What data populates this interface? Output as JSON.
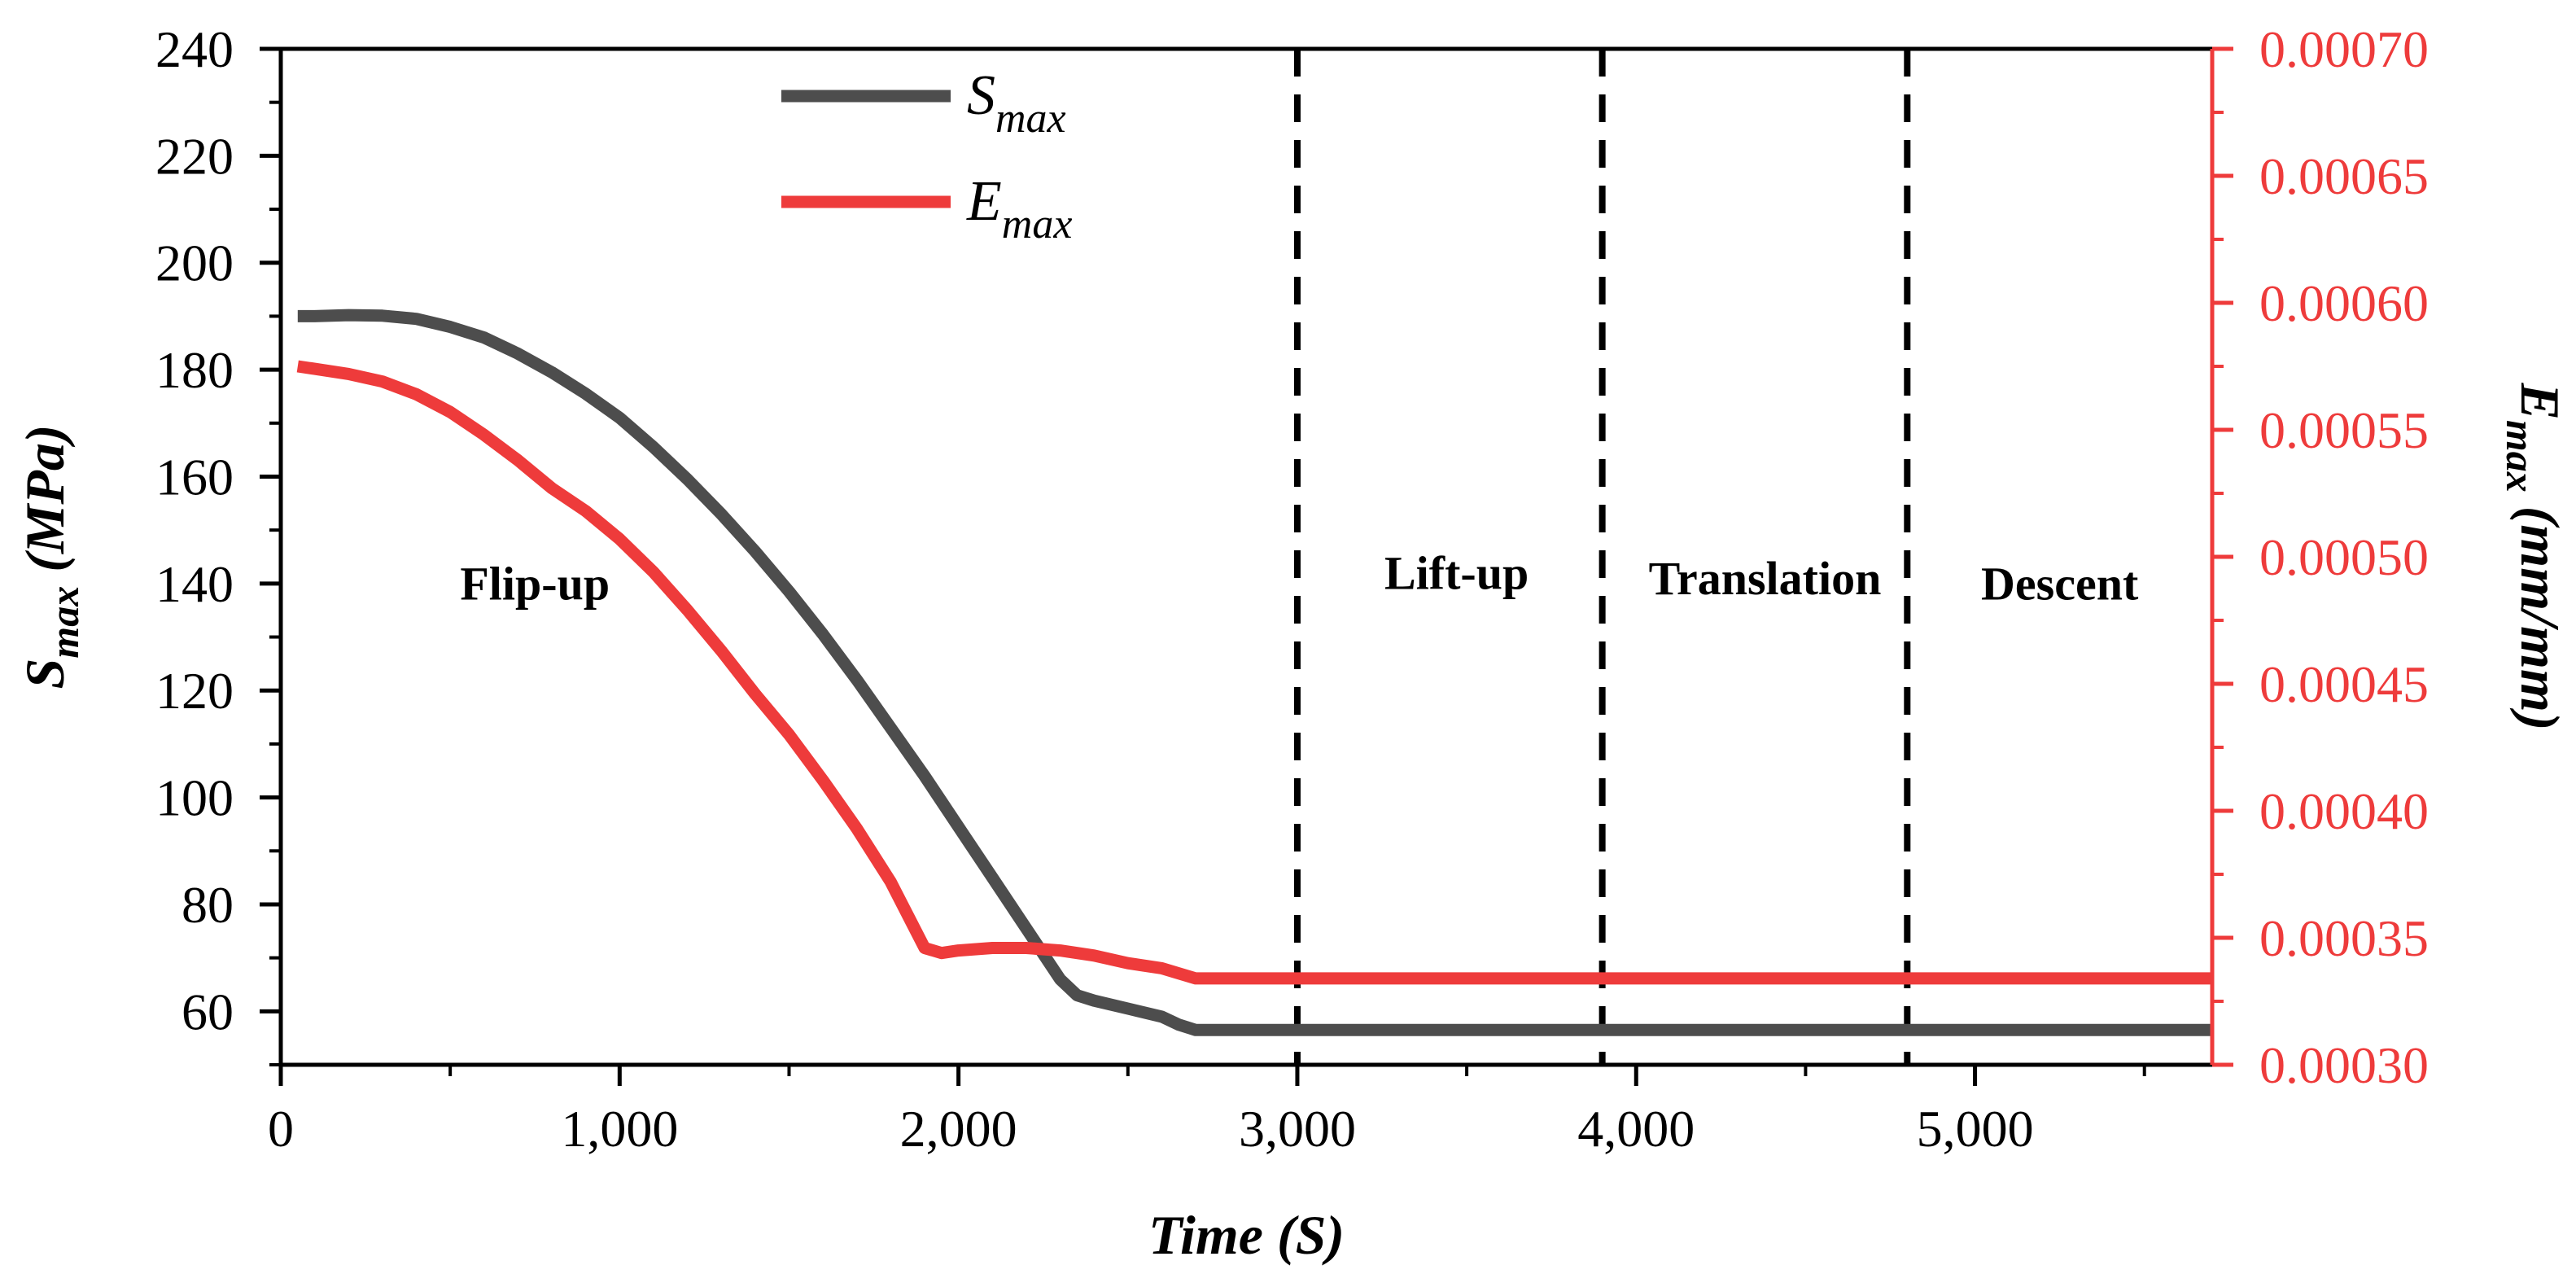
{
  "chart_data": {
    "type": "line",
    "x": {
      "label_main": "Time",
      "label_unit": "(S)",
      "range": [
        0,
        5700
      ],
      "ticks": [
        0,
        1000,
        2000,
        3000,
        4000,
        5000
      ],
      "tick_labels": [
        "0",
        "1,000",
        "2,000",
        "3,000",
        "4,000",
        "5,000"
      ]
    },
    "y_left": {
      "label_var": "S",
      "label_sub": "max",
      "label_unit": "(MPa)",
      "range": [
        50,
        240
      ],
      "ticks": [
        60,
        80,
        100,
        120,
        140,
        160,
        180,
        200,
        220,
        240
      ],
      "tick_labels": [
        "60",
        "80",
        "100",
        "120",
        "140",
        "160",
        "180",
        "200",
        "220",
        "240"
      ]
    },
    "y_right": {
      "label_var": "E",
      "label_sub": "max",
      "label_unit": "(mm/mm)",
      "range": [
        0.0003,
        0.0007
      ],
      "ticks": [
        0.0003,
        0.00035,
        0.0004,
        0.00045,
        0.0005,
        0.00055,
        0.0006,
        0.00065,
        0.0007
      ],
      "tick_labels": [
        "0.00030",
        "0.00035",
        "0.00040",
        "0.00045",
        "0.00050",
        "0.00055",
        "0.00060",
        "0.00065",
        "0.00070"
      ]
    },
    "series": [
      {
        "name_var": "S",
        "name_sub": "max",
        "color": "#4d4d4d",
        "axis": "left",
        "x": [
          50,
          100,
          200,
          300,
          400,
          500,
          600,
          700,
          800,
          900,
          1000,
          1100,
          1200,
          1300,
          1400,
          1500,
          1600,
          1700,
          1800,
          1900,
          2000,
          2100,
          2200,
          2300,
          2350,
          2400,
          2500,
          2600,
          2650,
          2700,
          3000,
          4000,
          5000,
          5700
        ],
        "values": [
          190,
          190,
          190.2,
          190.1,
          189.5,
          188,
          186,
          183,
          179.5,
          175.5,
          171,
          165.5,
          159.5,
          153,
          146,
          138.5,
          130.5,
          122,
          113,
          104,
          94.5,
          85,
          75.5,
          66,
          63,
          62,
          60.5,
          59,
          57.5,
          56.5,
          56.5,
          56.5,
          56.5,
          56.5
        ]
      },
      {
        "name_var": "E",
        "name_sub": "max",
        "color": "#ee3b3b",
        "axis": "right",
        "x": [
          50,
          100,
          200,
          300,
          400,
          500,
          600,
          700,
          800,
          900,
          1000,
          1100,
          1200,
          1300,
          1400,
          1500,
          1600,
          1700,
          1800,
          1900,
          1950,
          2000,
          2100,
          2200,
          2300,
          2400,
          2500,
          2600,
          2650,
          2700,
          3000,
          4000,
          5000,
          5700
        ],
        "values": [
          0.000575,
          0.000574,
          0.000572,
          0.000569,
          0.000564,
          0.000557,
          0.000548,
          0.000538,
          0.000527,
          0.000518,
          0.000507,
          0.000494,
          0.000479,
          0.000463,
          0.000446,
          0.00043,
          0.000412,
          0.000393,
          0.000372,
          0.000346,
          0.000344,
          0.000345,
          0.000346,
          0.000346,
          0.000345,
          0.000343,
          0.00034,
          0.000338,
          0.000336,
          0.000334,
          0.000334,
          0.000334,
          0.000334,
          0.000334
        ]
      }
    ],
    "phase_dividers": [
      3000,
      3900,
      4800
    ],
    "phases": [
      {
        "label": "Flip-up",
        "x": 750,
        "y_left": 137
      },
      {
        "label": "Lift-up",
        "x": 3470,
        "y_left": 139
      },
      {
        "label": "Translation",
        "x": 4380,
        "y_left": 138
      },
      {
        "label": "Descent",
        "x": 5250,
        "y_left": 137
      }
    ],
    "legend_position": "top-left"
  }
}
